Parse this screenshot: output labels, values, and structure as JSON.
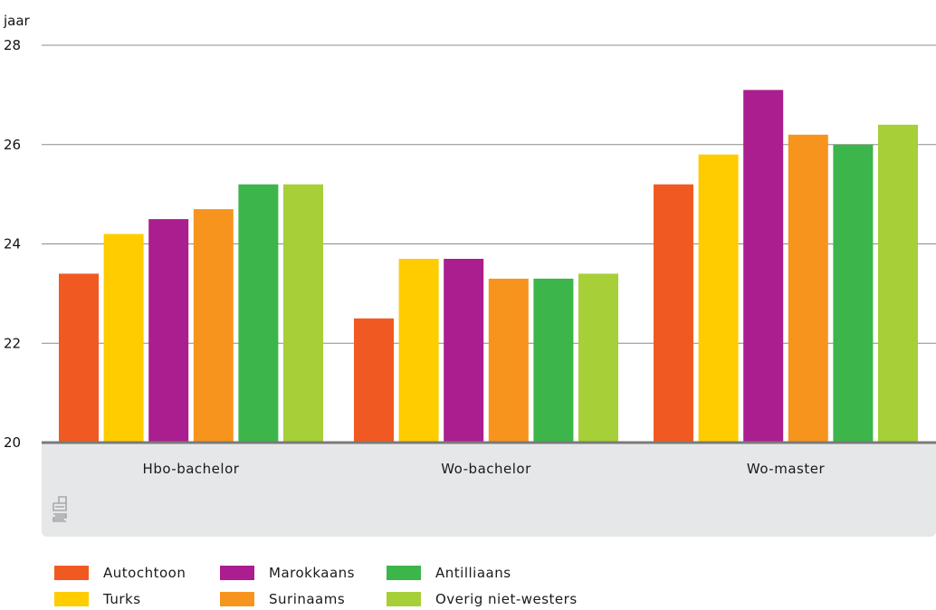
{
  "chart_data": {
    "type": "bar",
    "ylabel": "jaar",
    "ylim": [
      20,
      28
    ],
    "yticks": [
      "20",
      "22",
      "24",
      "26",
      "28"
    ],
    "grid": true,
    "legend_position": "bottom-left",
    "categories": [
      "Hbo-bachelor",
      "Wo-bachelor",
      "Wo-master"
    ],
    "series": [
      {
        "name": "Autochtoon",
        "color": "#f05a22",
        "values": [
          23.4,
          22.5,
          25.2
        ]
      },
      {
        "name": "Turks",
        "color": "#ffcc00",
        "values": [
          24.2,
          23.7,
          25.8
        ]
      },
      {
        "name": "Marokkaans",
        "color": "#ab1e8f",
        "values": [
          24.5,
          23.7,
          27.1
        ]
      },
      {
        "name": "Surinaams",
        "color": "#f7941e",
        "values": [
          24.7,
          23.3,
          26.2
        ]
      },
      {
        "name": "Antilliaans",
        "color": "#3cb54a",
        "values": [
          25.2,
          23.3,
          26.0
        ]
      },
      {
        "name": "Overig niet-westers",
        "color": "#a6cf38",
        "values": [
          25.2,
          23.4,
          26.4
        ]
      }
    ]
  },
  "logo_icon": "cbs-logo-icon"
}
